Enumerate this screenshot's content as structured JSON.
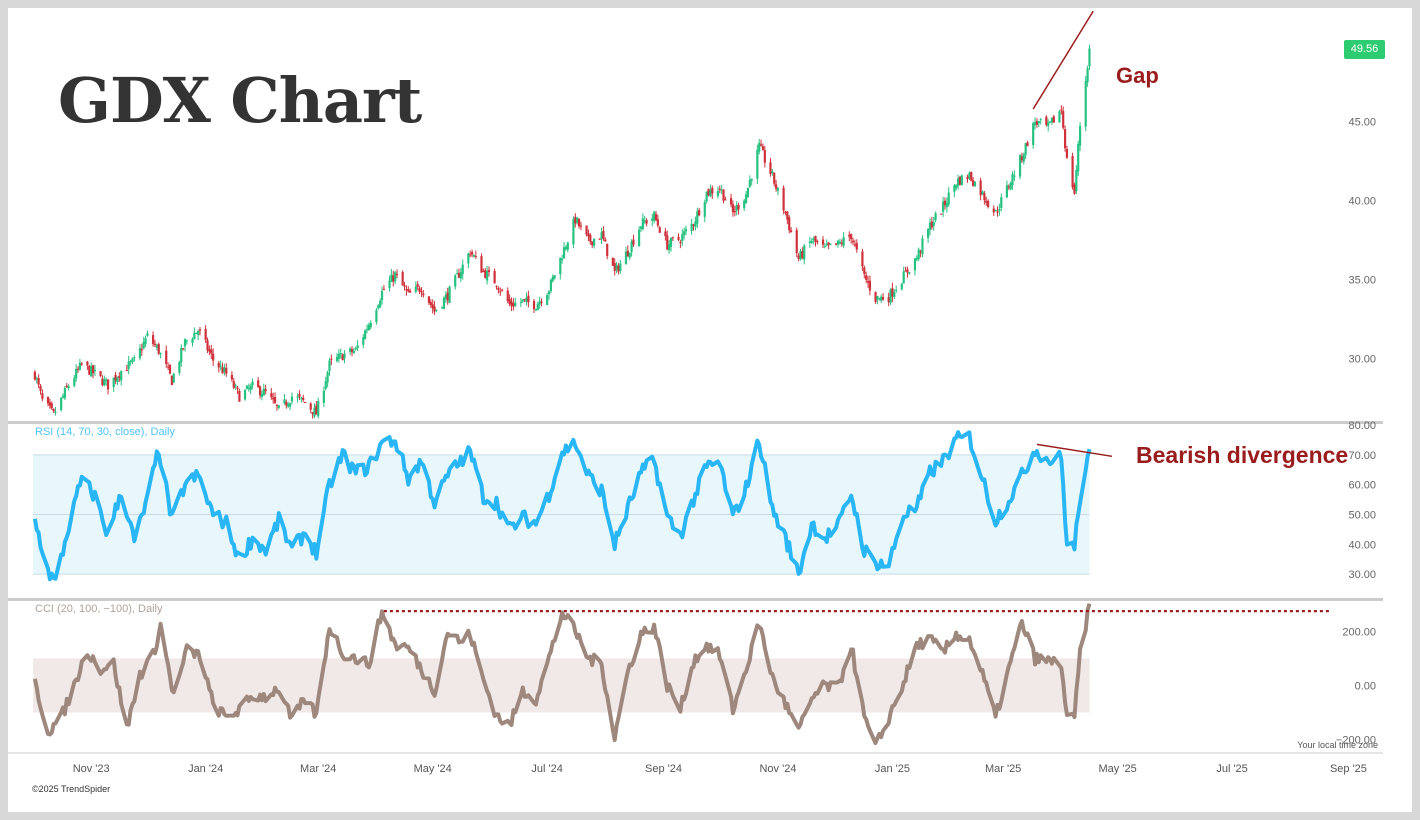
{
  "title": "GDX Chart",
  "copyright": "©2025 TrendSpider",
  "timezone_note": "Your local time zone",
  "last_price_badge": "49.56",
  "colors": {
    "up_candle": "#26c281",
    "down_candle": "#d0303a",
    "rsi_line": "#29b6f6",
    "rsi_band": "#e8f7fb",
    "cci_line": "#9e877d",
    "cci_band": "#f1e9e7",
    "annotation": "#9b1c1c",
    "badge": "#2ecc71"
  },
  "annotations": {
    "gap": "Gap",
    "bearish_divergence": "Bearish divergence"
  },
  "panes": {
    "rsi_label": "RSI (14, 70, 30, close), Daily",
    "cci_label": "CCI (20, 100, −100), Daily"
  },
  "chart_data": [
    {
      "type": "candlestick",
      "title": "GDX Chart",
      "x_ticks": [
        "Nov '23",
        "Jan '24",
        "Mar '24",
        "May '24",
        "Jul '24",
        "Sep '24",
        "Nov '24",
        "Jan '25",
        "Mar '25",
        "May '25",
        "Jul '25",
        "Sep '25"
      ],
      "y_ticks": [
        "30.00",
        "35.00",
        "40.00",
        "45.00"
      ],
      "ylim": [
        25.9,
        52.2
      ],
      "last_price": 49.56,
      "close_path": [
        [
          "2023-10-02",
          29.0
        ],
        [
          "2023-10-06",
          27.3
        ],
        [
          "2023-10-12",
          26.4
        ],
        [
          "2023-10-20",
          28.3
        ],
        [
          "2023-10-27",
          29.6
        ],
        [
          "2023-11-03",
          29.0
        ],
        [
          "2023-11-10",
          28.3
        ],
        [
          "2023-11-17",
          29.2
        ],
        [
          "2023-11-24",
          29.8
        ],
        [
          "2023-12-01",
          31.4
        ],
        [
          "2023-12-07",
          30.5
        ],
        [
          "2023-12-14",
          28.6
        ],
        [
          "2023-12-21",
          31.0
        ],
        [
          "2023-12-28",
          31.8
        ],
        [
          "2024-01-05",
          29.9
        ],
        [
          "2024-01-12",
          29.0
        ],
        [
          "2024-01-19",
          27.6
        ],
        [
          "2024-01-26",
          28.2
        ],
        [
          "2024-02-02",
          27.8
        ],
        [
          "2024-02-09",
          26.7
        ],
        [
          "2024-02-16",
          27.6
        ],
        [
          "2024-02-23",
          27.2
        ],
        [
          "2024-02-29",
          26.5
        ],
        [
          "2024-03-07",
          29.6
        ],
        [
          "2024-03-14",
          30.2
        ],
        [
          "2024-03-21",
          30.5
        ],
        [
          "2024-03-28",
          32.2
        ],
        [
          "2024-04-04",
          34.2
        ],
        [
          "2024-04-11",
          35.3
        ],
        [
          "2024-04-18",
          34.0
        ],
        [
          "2024-04-25",
          34.5
        ],
        [
          "2024-05-02",
          33.0
        ],
        [
          "2024-05-09",
          34.0
        ],
        [
          "2024-05-16",
          35.6
        ],
        [
          "2024-05-21",
          36.8
        ],
        [
          "2024-05-28",
          35.5
        ],
        [
          "2024-06-04",
          34.8
        ],
        [
          "2024-06-11",
          33.4
        ],
        [
          "2024-06-18",
          33.6
        ],
        [
          "2024-06-25",
          33.4
        ],
        [
          "2024-07-02",
          34.4
        ],
        [
          "2024-07-09",
          36.6
        ],
        [
          "2024-07-16",
          38.8
        ],
        [
          "2024-07-23",
          37.4
        ],
        [
          "2024-07-30",
          37.8
        ],
        [
          "2024-08-06",
          35.4
        ],
        [
          "2024-08-13",
          36.8
        ],
        [
          "2024-08-20",
          38.5
        ],
        [
          "2024-08-27",
          39.0
        ],
        [
          "2024-09-03",
          37.2
        ],
        [
          "2024-09-10",
          37.6
        ],
        [
          "2024-09-17",
          38.6
        ],
        [
          "2024-09-24",
          40.5
        ],
        [
          "2024-10-01",
          40.8
        ],
        [
          "2024-10-08",
          39.2
        ],
        [
          "2024-10-15",
          40.4
        ],
        [
          "2024-10-22",
          43.4
        ],
        [
          "2024-10-29",
          41.5
        ],
        [
          "2024-11-05",
          39.2
        ],
        [
          "2024-11-12",
          36.3
        ],
        [
          "2024-11-19",
          37.5
        ],
        [
          "2024-11-26",
          36.9
        ],
        [
          "2024-12-03",
          37.2
        ],
        [
          "2024-12-10",
          37.8
        ],
        [
          "2024-12-17",
          35.2
        ],
        [
          "2024-12-23",
          33.8
        ],
        [
          "2024-12-30",
          33.9
        ],
        [
          "2025-01-07",
          35.2
        ],
        [
          "2025-01-14",
          36.4
        ],
        [
          "2025-01-21",
          38.4
        ],
        [
          "2025-01-28",
          39.6
        ],
        [
          "2025-02-04",
          41.2
        ],
        [
          "2025-02-11",
          41.6
        ],
        [
          "2025-02-18",
          40.4
        ],
        [
          "2025-02-25",
          39.2
        ],
        [
          "2025-03-04",
          41.0
        ],
        [
          "2025-03-11",
          42.8
        ],
        [
          "2025-03-18",
          45.0
        ],
        [
          "2025-03-25",
          44.6
        ],
        [
          "2025-04-01",
          45.8
        ],
        [
          "2025-04-04",
          42.5
        ],
        [
          "2025-04-08",
          40.5
        ],
        [
          "2025-04-11",
          44.8
        ],
        [
          "2025-04-16",
          49.56
        ]
      ]
    },
    {
      "type": "line",
      "title": "RSI (14, 70, 30, close), Daily",
      "y_ticks": [
        "30.00",
        "40.00",
        "50.00",
        "60.00",
        "70.00",
        "80.00"
      ],
      "ylim": [
        22,
        80
      ],
      "band": [
        30,
        70
      ],
      "path": [
        [
          "2023-10-02",
          48
        ],
        [
          "2023-10-09",
          31
        ],
        [
          "2023-10-13",
          27
        ],
        [
          "2023-10-20",
          46
        ],
        [
          "2023-10-27",
          62
        ],
        [
          "2023-11-03",
          56
        ],
        [
          "2023-11-10",
          43
        ],
        [
          "2023-11-17",
          58
        ],
        [
          "2023-11-24",
          41
        ],
        [
          "2023-12-01",
          55
        ],
        [
          "2023-12-07",
          72
        ],
        [
          "2023-12-14",
          48
        ],
        [
          "2023-12-21",
          60
        ],
        [
          "2023-12-28",
          63
        ],
        [
          "2024-01-05",
          50
        ],
        [
          "2024-01-12",
          47
        ],
        [
          "2024-01-19",
          35
        ],
        [
          "2024-01-26",
          42
        ],
        [
          "2024-02-02",
          38
        ],
        [
          "2024-02-09",
          48
        ],
        [
          "2024-02-16",
          38
        ],
        [
          "2024-02-23",
          44
        ],
        [
          "2024-02-29",
          37
        ],
        [
          "2024-03-07",
          60
        ],
        [
          "2024-03-14",
          70
        ],
        [
          "2024-03-21",
          64
        ],
        [
          "2024-03-28",
          66
        ],
        [
          "2024-04-04",
          74
        ],
        [
          "2024-04-11",
          75
        ],
        [
          "2024-04-18",
          62
        ],
        [
          "2024-04-25",
          68
        ],
        [
          "2024-05-02",
          54
        ],
        [
          "2024-05-09",
          63
        ],
        [
          "2024-05-16",
          68
        ],
        [
          "2024-05-21",
          71
        ],
        [
          "2024-05-28",
          56
        ],
        [
          "2024-06-04",
          54
        ],
        [
          "2024-06-11",
          45
        ],
        [
          "2024-06-18",
          49
        ],
        [
          "2024-06-25",
          47
        ],
        [
          "2024-07-02",
          57
        ],
        [
          "2024-07-09",
          71
        ],
        [
          "2024-07-16",
          74
        ],
        [
          "2024-07-23",
          63
        ],
        [
          "2024-07-30",
          58
        ],
        [
          "2024-08-06",
          40
        ],
        [
          "2024-08-13",
          52
        ],
        [
          "2024-08-20",
          64
        ],
        [
          "2024-08-27",
          68
        ],
        [
          "2024-09-03",
          49
        ],
        [
          "2024-09-10",
          43
        ],
        [
          "2024-09-17",
          55
        ],
        [
          "2024-09-24",
          66
        ],
        [
          "2024-10-01",
          67
        ],
        [
          "2024-10-08",
          49
        ],
        [
          "2024-10-15",
          59
        ],
        [
          "2024-10-22",
          75
        ],
        [
          "2024-10-29",
          52
        ],
        [
          "2024-11-05",
          42
        ],
        [
          "2024-11-12",
          30
        ],
        [
          "2024-11-19",
          47
        ],
        [
          "2024-11-26",
          42
        ],
        [
          "2024-12-03",
          46
        ],
        [
          "2024-12-10",
          57
        ],
        [
          "2024-12-17",
          38
        ],
        [
          "2024-12-23",
          34
        ],
        [
          "2024-12-30",
          33
        ],
        [
          "2025-01-07",
          50
        ],
        [
          "2025-01-14",
          52
        ],
        [
          "2025-01-21",
          64
        ],
        [
          "2025-01-28",
          68
        ],
        [
          "2025-02-04",
          75
        ],
        [
          "2025-02-11",
          76
        ],
        [
          "2025-02-18",
          62
        ],
        [
          "2025-02-25",
          48
        ],
        [
          "2025-03-04",
          55
        ],
        [
          "2025-03-11",
          63
        ],
        [
          "2025-03-18",
          72
        ],
        [
          "2025-03-25",
          68
        ],
        [
          "2025-04-01",
          69
        ],
        [
          "2025-04-04",
          40
        ],
        [
          "2025-04-08",
          39
        ],
        [
          "2025-04-11",
          56
        ],
        [
          "2025-04-16",
          70
        ]
      ]
    },
    {
      "type": "line",
      "title": "CCI (20, 100, −100), Daily",
      "y_ticks": [
        "-200.00",
        "0.00",
        "200.00"
      ],
      "ylim": [
        -250,
        305
      ],
      "band": [
        -100,
        100
      ],
      "reference_level": 275,
      "path": [
        [
          "2023-10-02",
          10
        ],
        [
          "2023-10-09",
          -170
        ],
        [
          "2023-10-16",
          -120
        ],
        [
          "2023-10-23",
          0
        ],
        [
          "2023-10-30",
          130
        ],
        [
          "2023-11-06",
          60
        ],
        [
          "2023-11-13",
          80
        ],
        [
          "2023-11-20",
          -160
        ],
        [
          "2023-11-27",
          40
        ],
        [
          "2023-12-04",
          110
        ],
        [
          "2023-12-08",
          220
        ],
        [
          "2023-12-15",
          -40
        ],
        [
          "2023-12-22",
          130
        ],
        [
          "2023-12-29",
          110
        ],
        [
          "2024-01-05",
          -70
        ],
        [
          "2024-01-12",
          -120
        ],
        [
          "2024-01-19",
          -90
        ],
        [
          "2024-01-26",
          -40
        ],
        [
          "2024-02-02",
          -40
        ],
        [
          "2024-02-09",
          -10
        ],
        [
          "2024-02-16",
          -130
        ],
        [
          "2024-02-23",
          -50
        ],
        [
          "2024-02-29",
          -110
        ],
        [
          "2024-03-07",
          220
        ],
        [
          "2024-03-14",
          120
        ],
        [
          "2024-03-21",
          100
        ],
        [
          "2024-03-28",
          80
        ],
        [
          "2024-04-04",
          275
        ],
        [
          "2024-04-11",
          150
        ],
        [
          "2024-04-18",
          140
        ],
        [
          "2024-04-25",
          60
        ],
        [
          "2024-05-02",
          -20
        ],
        [
          "2024-05-09",
          200
        ],
        [
          "2024-05-16",
          160
        ],
        [
          "2024-05-21",
          190
        ],
        [
          "2024-05-28",
          20
        ],
        [
          "2024-06-04",
          -110
        ],
        [
          "2024-06-11",
          -150
        ],
        [
          "2024-06-18",
          -20
        ],
        [
          "2024-06-25",
          -50
        ],
        [
          "2024-07-02",
          100
        ],
        [
          "2024-07-09",
          270
        ],
        [
          "2024-07-16",
          200
        ],
        [
          "2024-07-23",
          100
        ],
        [
          "2024-07-30",
          80
        ],
        [
          "2024-08-06",
          -190
        ],
        [
          "2024-08-13",
          50
        ],
        [
          "2024-08-20",
          190
        ],
        [
          "2024-08-27",
          220
        ],
        [
          "2024-09-03",
          0
        ],
        [
          "2024-09-10",
          -90
        ],
        [
          "2024-09-17",
          90
        ],
        [
          "2024-09-24",
          150
        ],
        [
          "2024-10-01",
          110
        ],
        [
          "2024-10-08",
          -90
        ],
        [
          "2024-10-15",
          60
        ],
        [
          "2024-10-22",
          230
        ],
        [
          "2024-10-29",
          30
        ],
        [
          "2024-11-05",
          -70
        ],
        [
          "2024-11-12",
          -170
        ],
        [
          "2024-11-19",
          -50
        ],
        [
          "2024-11-26",
          0
        ],
        [
          "2024-12-03",
          -10
        ],
        [
          "2024-12-10",
          150
        ],
        [
          "2024-12-17",
          -120
        ],
        [
          "2024-12-23",
          -230
        ],
        [
          "2024-12-30",
          -120
        ],
        [
          "2025-01-07",
          10
        ],
        [
          "2025-01-14",
          150
        ],
        [
          "2025-01-21",
          170
        ],
        [
          "2025-01-28",
          120
        ],
        [
          "2025-02-04",
          190
        ],
        [
          "2025-02-11",
          170
        ],
        [
          "2025-02-18",
          40
        ],
        [
          "2025-02-25",
          -120
        ],
        [
          "2025-03-04",
          60
        ],
        [
          "2025-03-11",
          230
        ],
        [
          "2025-03-18",
          100
        ],
        [
          "2025-03-25",
          90
        ],
        [
          "2025-04-01",
          80
        ],
        [
          "2025-04-04",
          -130
        ],
        [
          "2025-04-08",
          -120
        ],
        [
          "2025-04-11",
          120
        ],
        [
          "2025-04-16",
          290
        ]
      ]
    }
  ]
}
